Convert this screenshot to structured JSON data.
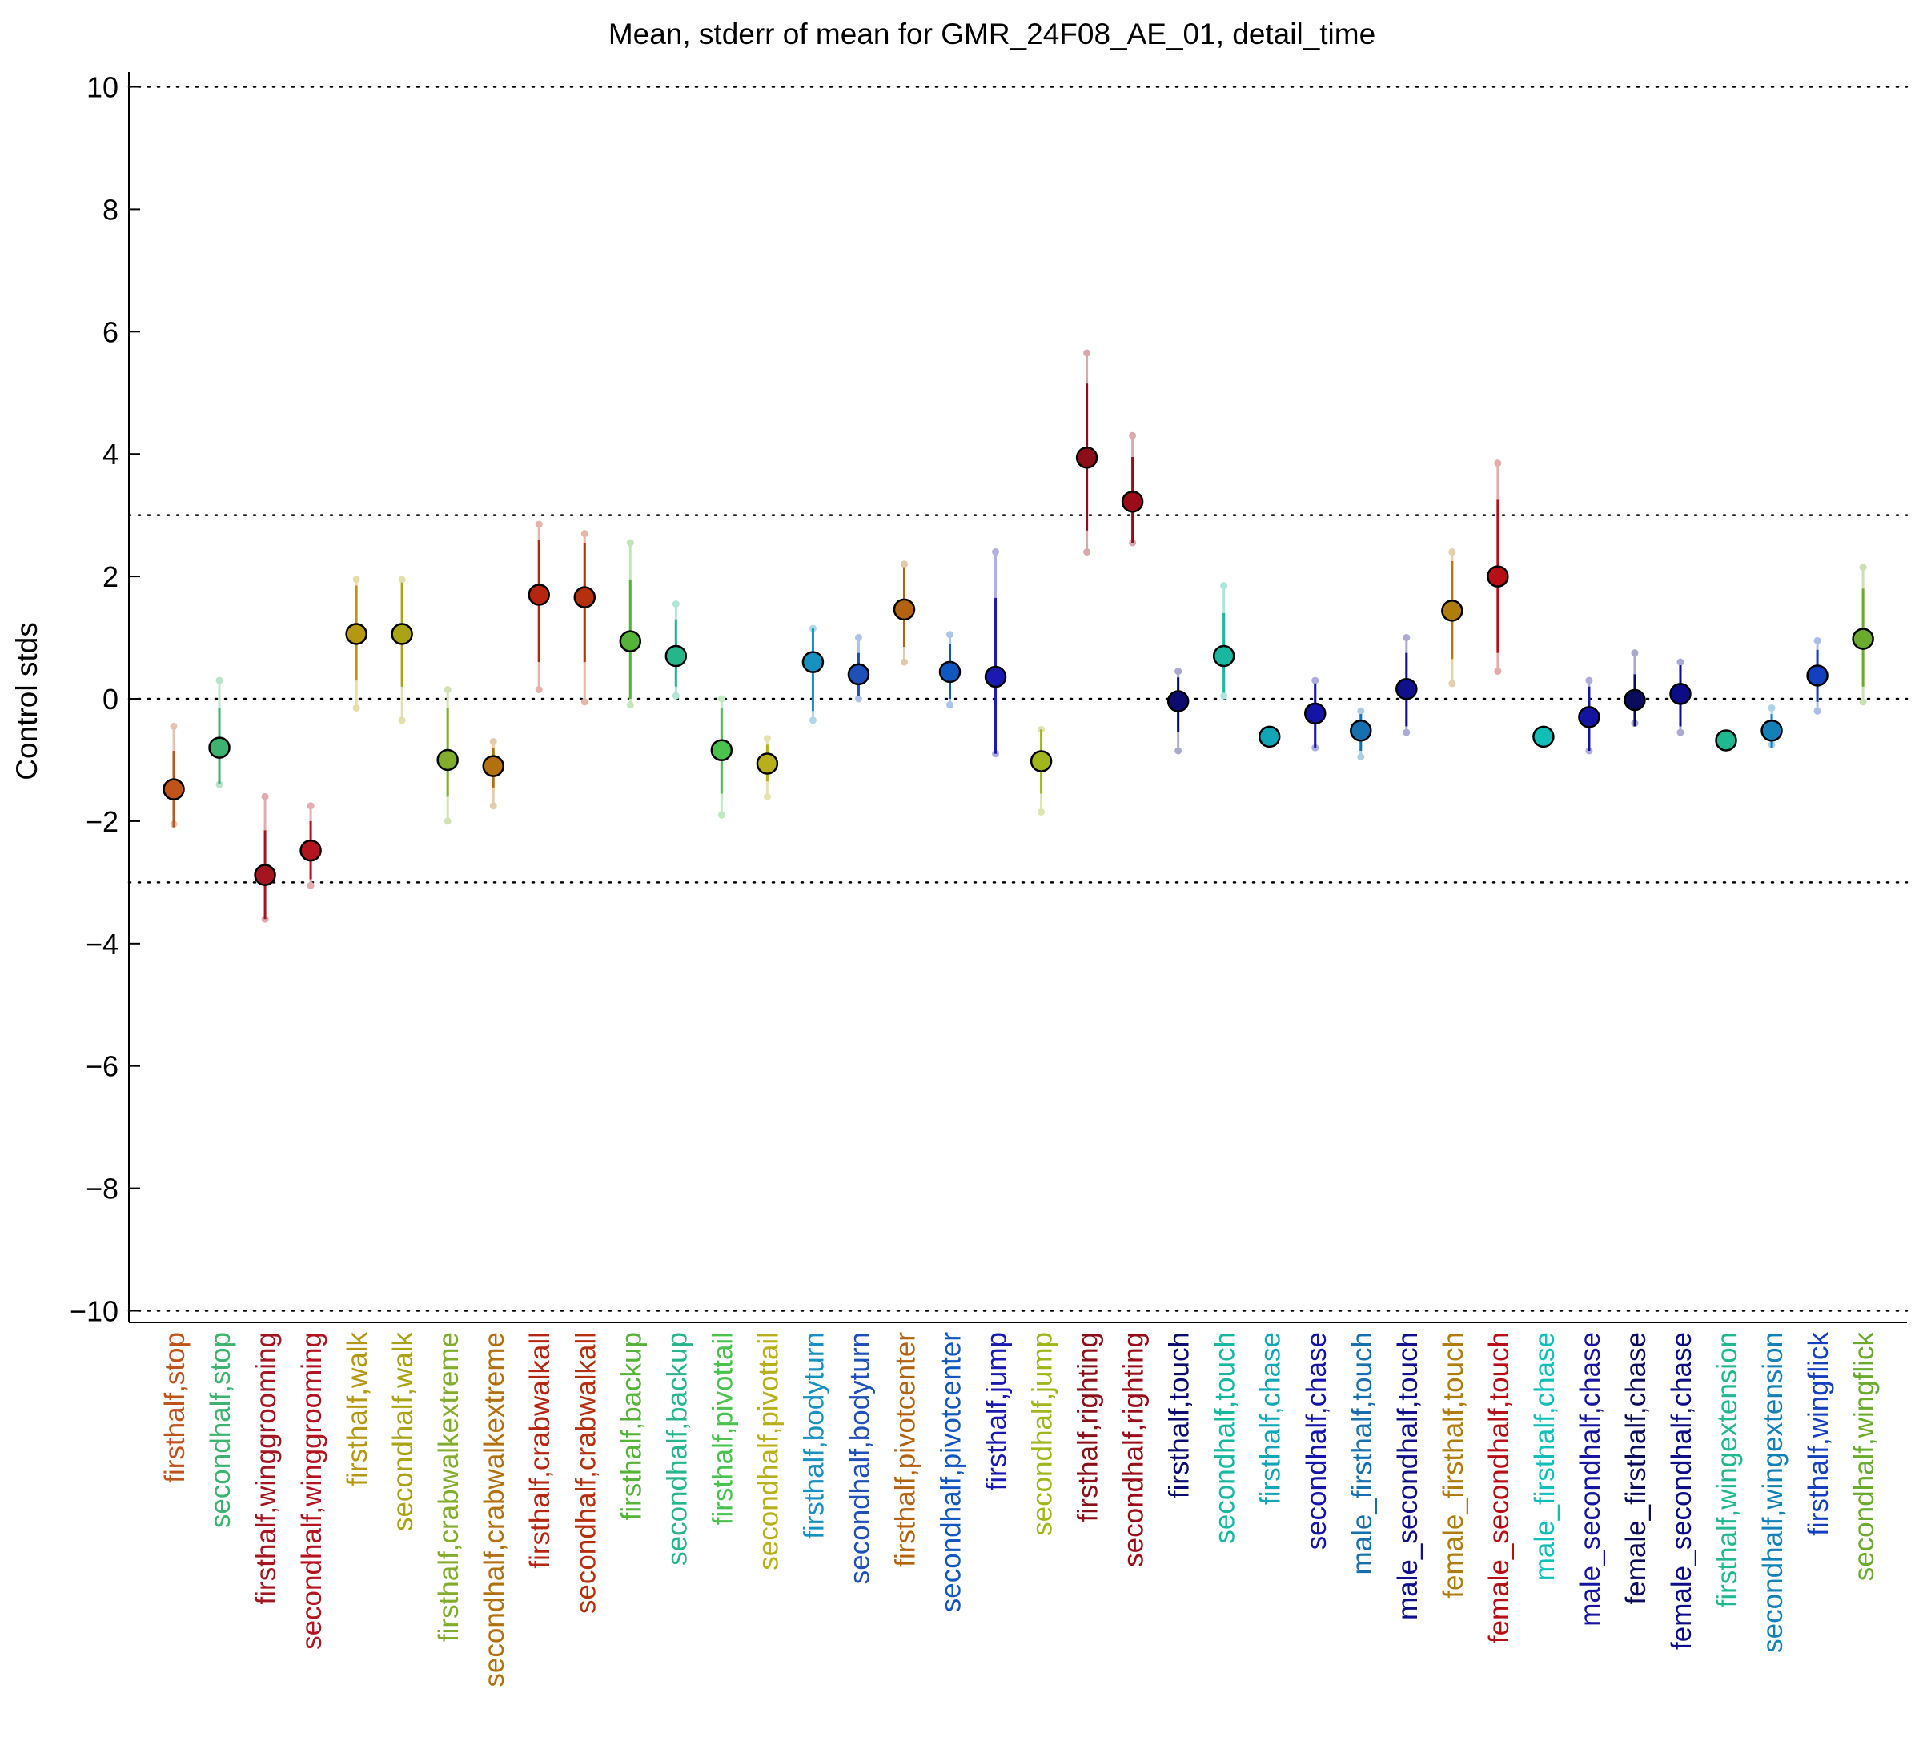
{
  "chart_data": {
    "type": "scatter",
    "title": "Mean, stderr of mean for GMR_24F08_AE_01, detail_time",
    "xlabel": "",
    "ylabel": "Control stds",
    "ylim": [
      -10.2,
      10.2
    ],
    "yticks": [
      -10,
      -8,
      -6,
      -4,
      -2,
      0,
      2,
      4,
      6,
      8,
      10
    ],
    "ytick_labels": [
      "−10",
      "−8",
      "−6",
      "−4",
      "−2",
      "0",
      "2",
      "4",
      "6",
      "8",
      "10"
    ],
    "reference_lines": [
      -10,
      -3,
      0,
      3,
      10
    ],
    "grid": false,
    "categories": [
      "firsthalf,stop",
      "secondhalf,stop",
      "firsthalf,winggrooming",
      "secondhalf,winggrooming",
      "firsthalf,walk",
      "secondhalf,walk",
      "firsthalf,crabwalkextreme",
      "secondhalf,crabwalkextreme",
      "firsthalf,crabwalkall",
      "secondhalf,crabwalkall",
      "firsthalf,backup",
      "secondhalf,backup",
      "firsthalf,pivottail",
      "secondhalf,pivottail",
      "firsthalf,bodyturn",
      "secondhalf,bodyturn",
      "firsthalf,pivotcenter",
      "secondhalf,pivotcenter",
      "firsthalf,jump",
      "secondhalf,jump",
      "firsthalf,righting",
      "secondhalf,righting",
      "firsthalf,touch",
      "secondhalf,touch",
      "firsthalf,chase",
      "secondhalf,chase",
      "male_firsthalf,touch",
      "male_secondhalf,touch",
      "female_firsthalf,touch",
      "female_secondhalf,touch",
      "male_firsthalf,chase",
      "male_secondhalf,chase",
      "female_firsthalf,chase",
      "female_secondhalf,chase",
      "firsthalf,wingextension",
      "secondhalf,wingextension",
      "firsthalf,wingflick",
      "secondhalf,wingflick"
    ],
    "category_colors": [
      "#c0531a",
      "#3cb36e",
      "#a3151f",
      "#b3141f",
      "#b59810",
      "#aaa415",
      "#82ad2c",
      "#b3700e",
      "#b5250f",
      "#b5300f",
      "#56b33a",
      "#27b58c",
      "#4ac24f",
      "#b8b01a",
      "#1890c0",
      "#1e50b8",
      "#b3620f",
      "#1058c0",
      "#1a1ab0",
      "#a0b61a",
      "#8c0e18",
      "#9c0c18",
      "#0c0c70",
      "#18b8a0",
      "#10a6b8",
      "#1414a8",
      "#1670b0",
      "#10108a",
      "#b07c0e",
      "#b80e16",
      "#10c0b8",
      "#1414a0",
      "#0c0c5c",
      "#0c0c86",
      "#20b890",
      "#1480b8",
      "#1440c0",
      "#6aaa2c"
    ],
    "series": [
      {
        "mean": [
          -1.48,
          -0.8,
          -2.88,
          -2.48,
          1.06,
          1.06,
          -1.0,
          -1.1,
          1.7,
          1.66,
          0.94,
          0.7,
          -0.84,
          -1.06,
          0.6,
          0.4,
          1.46,
          0.44,
          0.36,
          -1.02,
          3.94,
          3.22,
          -0.04,
          0.7,
          -0.62,
          -0.24,
          -0.52,
          0.16,
          1.44,
          2.0,
          -0.62,
          -0.3,
          -0.02,
          0.08,
          -0.68,
          -0.52,
          0.38,
          0.98
        ],
        "err_low": [
          -2.1,
          -1.4,
          -3.6,
          -2.95,
          0.3,
          0.2,
          -1.6,
          -1.45,
          0.6,
          0.6,
          0.0,
          0.2,
          -1.55,
          -1.35,
          -0.2,
          0.05,
          0.85,
          0.0,
          -0.9,
          -1.55,
          2.75,
          2.55,
          -0.55,
          0.1,
          -0.62,
          -0.8,
          -0.85,
          -0.45,
          0.65,
          0.75,
          -0.62,
          -0.85,
          -0.45,
          -0.45,
          -0.68,
          -0.8,
          -0.05,
          0.2
        ],
        "err_high": [
          -0.85,
          -0.15,
          -2.15,
          -2.0,
          1.85,
          1.9,
          -0.15,
          -0.8,
          2.6,
          2.55,
          1.95,
          1.3,
          -0.15,
          -0.75,
          1.15,
          0.75,
          2.15,
          0.9,
          1.65,
          -0.5,
          5.15,
          3.95,
          0.35,
          1.4,
          -0.62,
          0.25,
          -0.25,
          0.75,
          2.25,
          3.25,
          -0.62,
          0.2,
          0.4,
          0.55,
          -0.68,
          -0.25,
          0.8,
          1.8
        ],
        "individual_low": [
          -2.05,
          -1.4,
          -3.6,
          -3.05,
          -0.15,
          -0.35,
          -2.0,
          -1.75,
          0.15,
          -0.05,
          -0.1,
          0.05,
          -1.9,
          -1.6,
          -0.35,
          0.0,
          0.6,
          -0.1,
          -0.9,
          -1.85,
          2.4,
          2.55,
          -0.85,
          0.05,
          -0.62,
          -0.8,
          -0.95,
          -0.55,
          0.25,
          0.45,
          -0.62,
          -0.85,
          -0.4,
          -0.55,
          -0.68,
          -0.75,
          -0.2,
          -0.05
        ],
        "individual_high": [
          -0.45,
          0.3,
          -1.6,
          -1.75,
          1.95,
          1.95,
          0.15,
          -0.7,
          2.85,
          2.7,
          2.55,
          1.55,
          0.0,
          -0.65,
          1.15,
          1.0,
          2.2,
          1.05,
          2.4,
          -0.5,
          5.65,
          4.3,
          0.45,
          1.85,
          -0.62,
          0.3,
          -0.2,
          1.0,
          2.4,
          3.85,
          -0.62,
          0.3,
          0.75,
          0.6,
          -0.68,
          -0.15,
          0.95,
          2.15
        ]
      }
    ]
  }
}
